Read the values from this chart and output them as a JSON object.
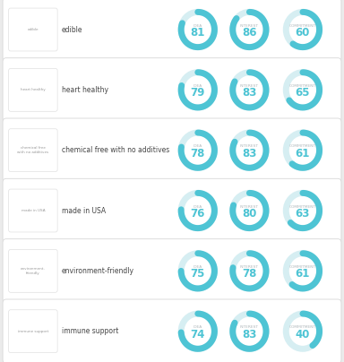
{
  "rows": [
    {
      "tag": "edible",
      "label": "edible",
      "idea": 81,
      "interest": 86,
      "commitment": 60
    },
    {
      "tag": "heart healthy",
      "label": "heart healthy",
      "idea": 79,
      "interest": 83,
      "commitment": 65
    },
    {
      "tag": "chemical free\nwith no additives",
      "label": "chemical free with no additives",
      "idea": 78,
      "interest": 83,
      "commitment": 61
    },
    {
      "tag": "made in USA",
      "label": "made in USA",
      "idea": 76,
      "interest": 80,
      "commitment": 63
    },
    {
      "tag": "environment-\nfriendly",
      "label": "environment-friendly",
      "idea": 75,
      "interest": 78,
      "commitment": 61
    },
    {
      "tag": "immune support",
      "label": "immune support",
      "idea": 74,
      "interest": 83,
      "commitment": 40
    }
  ],
  "col_labels": [
    "IDEA",
    "INTEREST",
    "COMMITMENT"
  ],
  "arc_color": "#4ec4d4",
  "arc_bg_color": "#d6eef2",
  "number_color": "#4ec4d4",
  "label_color_small": "#b0b8bb",
  "label_color_main": "#444444",
  "tag_color": "#999999",
  "bg_color": "#ebebeb",
  "card_color": "#ffffff",
  "tag_box_color": "#ffffff",
  "tag_box_border": "#e0e0e0"
}
